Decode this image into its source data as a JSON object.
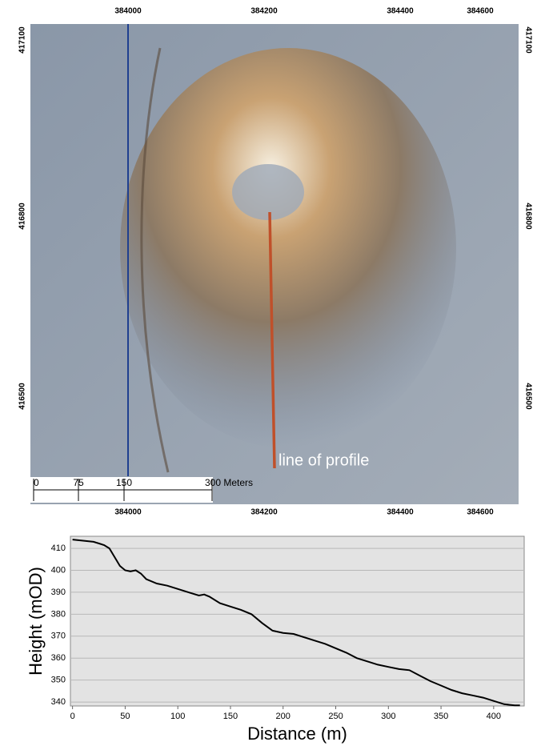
{
  "map": {
    "top_labels": [
      "384000",
      "384200",
      "384400",
      "384600"
    ],
    "bottom_labels": [
      "384000",
      "384200",
      "384400",
      "384600"
    ],
    "left_labels": [
      "417100",
      "416800",
      "416500"
    ],
    "right_labels": [
      "417100",
      "416800",
      "416500"
    ],
    "scale_labels": [
      "0",
      "75",
      "150",
      "300 Meters"
    ],
    "annotation": "line of profile"
  },
  "chart_data": {
    "type": "line",
    "x_label": "Distance (m)",
    "y_label": "Height (mOD)",
    "x": [
      0,
      10,
      20,
      30,
      35,
      40,
      45,
      50,
      55,
      60,
      65,
      70,
      80,
      90,
      100,
      110,
      120,
      125,
      130,
      140,
      150,
      160,
      170,
      180,
      190,
      200,
      210,
      220,
      230,
      240,
      250,
      260,
      270,
      280,
      290,
      300,
      310,
      320,
      330,
      340,
      350,
      360,
      370,
      380,
      390,
      400,
      410,
      420,
      425
    ],
    "values": [
      414,
      413.5,
      413,
      411.5,
      410,
      406,
      402,
      400,
      399.5,
      400,
      398.5,
      396,
      394,
      393,
      391.5,
      390,
      388.5,
      389,
      388,
      385,
      383.5,
      382,
      380,
      376,
      372.5,
      371.5,
      371,
      369.5,
      368,
      366.5,
      364.5,
      362.5,
      360,
      358.5,
      357,
      356,
      355,
      354.5,
      352,
      349.5,
      347.5,
      345.5,
      344,
      343,
      342,
      340.5,
      339,
      338.5,
      338.5
    ],
    "color": "#000000",
    "xlim": [
      -2,
      429
    ],
    "xticks": [
      0,
      50,
      100,
      150,
      200,
      250,
      300,
      350,
      400
    ],
    "ylim": [
      338.2,
      415.5
    ],
    "yticks": [
      340,
      350,
      360,
      370,
      380,
      390,
      400,
      410
    ],
    "grid": true
  }
}
